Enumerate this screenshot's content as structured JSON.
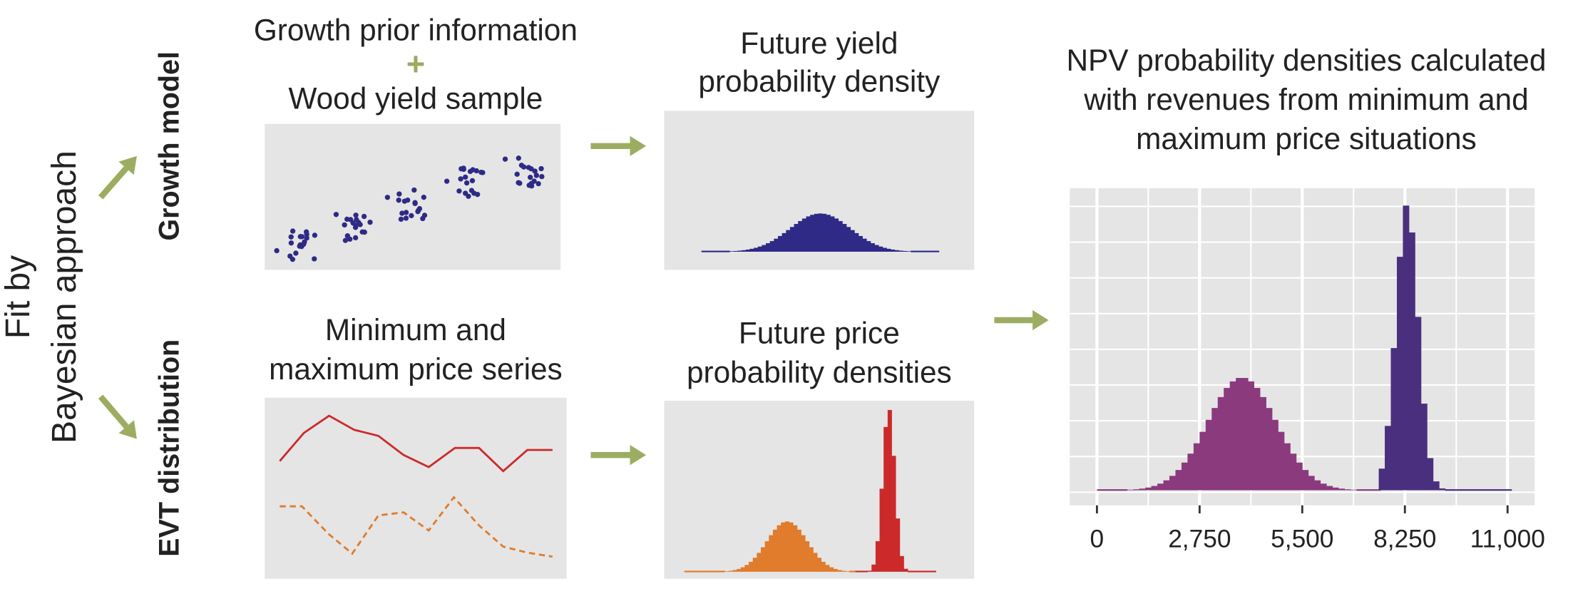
{
  "side_label": {
    "line1": "Fit by",
    "line2": "Bayesian approach"
  },
  "growth_model": {
    "label": "Growth model",
    "prior": "Growth prior information",
    "plus": "+",
    "sample": "Wood yield sample",
    "output": {
      "line1": "Future yield",
      "line2": "probability density"
    }
  },
  "evt_distribution": {
    "label": "EVT distribution",
    "input": {
      "line1": "Minimum and",
      "line2": "maximum price series"
    },
    "output": {
      "line1": "Future price",
      "line2": "probability densities"
    }
  },
  "npv": {
    "title": {
      "line1": "NPV probability densities calculated",
      "line2": "with revenues from minimum and",
      "line3": "maximum price situations"
    },
    "x_tick_labels": [
      "0",
      "2,750",
      "5,500",
      "8,250",
      "11,000"
    ]
  }
}
